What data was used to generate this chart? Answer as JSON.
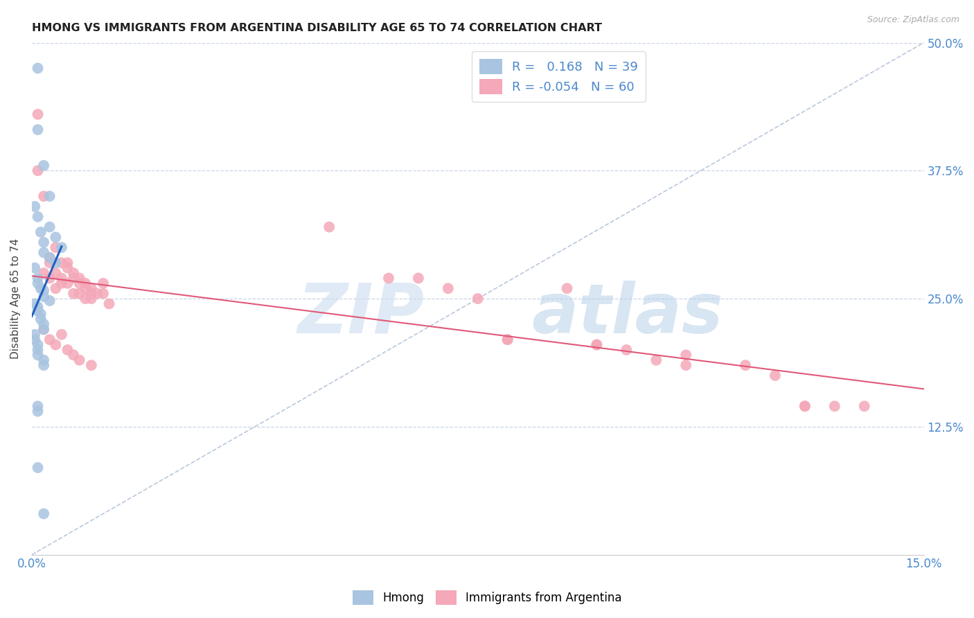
{
  "title": "HMONG VS IMMIGRANTS FROM ARGENTINA DISABILITY AGE 65 TO 74 CORRELATION CHART",
  "source": "Source: ZipAtlas.com",
  "ylabel": "Disability Age 65 to 74",
  "xmin": 0.0,
  "xmax": 0.15,
  "ymin": 0.0,
  "ymax": 0.5,
  "yticks": [
    0.0,
    0.125,
    0.25,
    0.375,
    0.5
  ],
  "ytick_labels": [
    "",
    "12.5%",
    "25.0%",
    "37.5%",
    "50.0%"
  ],
  "legend_r_hmong": "0.168",
  "legend_n_hmong": "39",
  "legend_r_argentina": "-0.054",
  "legend_n_argentina": "60",
  "hmong_color": "#a8c4e0",
  "hmong_line_color": "#2060c0",
  "argentina_color": "#f4a8b8",
  "argentina_line_color": "#e05878",
  "diagonal_color": "#b8c8dc",
  "hmong_x": [
    0.001,
    0.001,
    0.002,
    0.003,
    0.003,
    0.004,
    0.005,
    0.0005,
    0.001,
    0.0015,
    0.002,
    0.002,
    0.003,
    0.004,
    0.0005,
    0.001,
    0.001,
    0.0015,
    0.002,
    0.002,
    0.003,
    0.0005,
    0.001,
    0.001,
    0.0015,
    0.0015,
    0.002,
    0.002,
    0.0005,
    0.0005,
    0.001,
    0.001,
    0.001,
    0.002,
    0.002,
    0.001,
    0.001,
    0.001,
    0.002
  ],
  "hmong_y": [
    0.475,
    0.415,
    0.38,
    0.35,
    0.32,
    0.31,
    0.3,
    0.34,
    0.33,
    0.315,
    0.305,
    0.295,
    0.29,
    0.285,
    0.28,
    0.27,
    0.265,
    0.26,
    0.258,
    0.252,
    0.248,
    0.245,
    0.242,
    0.238,
    0.235,
    0.23,
    0.225,
    0.22,
    0.215,
    0.21,
    0.205,
    0.2,
    0.195,
    0.19,
    0.185,
    0.145,
    0.14,
    0.085,
    0.04
  ],
  "argentina_x": [
    0.001,
    0.002,
    0.003,
    0.003,
    0.004,
    0.004,
    0.005,
    0.005,
    0.006,
    0.006,
    0.007,
    0.007,
    0.008,
    0.008,
    0.009,
    0.009,
    0.01,
    0.01,
    0.011,
    0.012,
    0.012,
    0.013,
    0.001,
    0.002,
    0.003,
    0.004,
    0.005,
    0.006,
    0.007,
    0.008,
    0.009,
    0.01,
    0.002,
    0.003,
    0.004,
    0.005,
    0.006,
    0.007,
    0.008,
    0.01,
    0.06,
    0.065,
    0.07,
    0.075,
    0.08,
    0.08,
    0.09,
    0.095,
    0.095,
    0.1,
    0.105,
    0.11,
    0.11,
    0.12,
    0.125,
    0.13,
    0.13,
    0.135,
    0.14,
    0.05
  ],
  "argentina_y": [
    0.43,
    0.275,
    0.285,
    0.27,
    0.26,
    0.275,
    0.265,
    0.27,
    0.285,
    0.265,
    0.255,
    0.27,
    0.265,
    0.255,
    0.26,
    0.25,
    0.26,
    0.25,
    0.255,
    0.265,
    0.255,
    0.245,
    0.375,
    0.35,
    0.29,
    0.3,
    0.285,
    0.28,
    0.275,
    0.27,
    0.265,
    0.255,
    0.22,
    0.21,
    0.205,
    0.215,
    0.2,
    0.195,
    0.19,
    0.185,
    0.27,
    0.27,
    0.26,
    0.25,
    0.21,
    0.21,
    0.26,
    0.205,
    0.205,
    0.2,
    0.19,
    0.185,
    0.195,
    0.185,
    0.175,
    0.145,
    0.145,
    0.145,
    0.145,
    0.32
  ]
}
